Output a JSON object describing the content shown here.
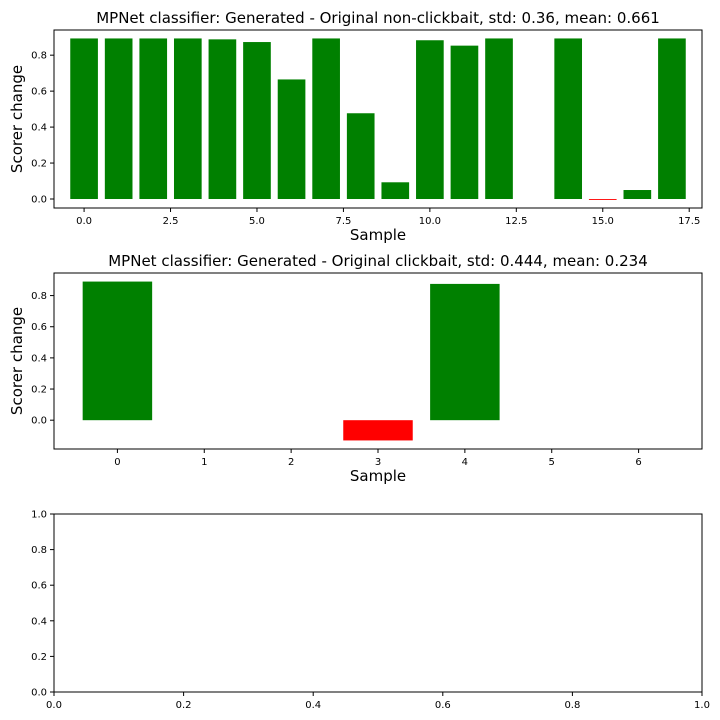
{
  "chart_data": [
    {
      "type": "bar",
      "title": "MPNet classifier: Generated - Original non-clickbait, std: 0.36, mean: 0.661",
      "xlabel": "Sample",
      "ylabel": "Scorer change",
      "x": [
        0,
        1,
        2,
        3,
        4,
        5,
        6,
        7,
        8,
        9,
        10,
        11,
        12,
        13,
        14,
        15,
        16,
        17
      ],
      "values": [
        0.893,
        0.893,
        0.893,
        0.893,
        0.888,
        0.873,
        0.665,
        0.893,
        0.477,
        0.093,
        0.883,
        0.853,
        0.893,
        0.0,
        0.893,
        -0.005,
        0.05,
        0.893
      ],
      "xlim": [
        -0.87,
        17.87
      ],
      "ylim": [
        -0.05,
        0.94
      ],
      "xticks": [
        0.0,
        2.5,
        5.0,
        7.5,
        10.0,
        12.5,
        15.0,
        17.5
      ],
      "xtick_labels": [
        "0.0",
        "2.5",
        "5.0",
        "7.5",
        "10.0",
        "12.5",
        "15.0",
        "17.5"
      ],
      "yticks": [
        0.0,
        0.2,
        0.4,
        0.6,
        0.8
      ],
      "ytick_labels": [
        "0.0",
        "0.2",
        "0.4",
        "0.6",
        "0.8"
      ],
      "positive_color": "#008000",
      "negative_color": "#ff0000",
      "grid": false
    },
    {
      "type": "bar",
      "title": "MPNet classifier: Generated - Original clickbait, std: 0.444, mean: 0.234",
      "xlabel": "Sample",
      "ylabel": "Scorer change",
      "x": [
        0,
        1,
        2,
        3,
        4,
        5,
        6
      ],
      "values": [
        0.89,
        0.0,
        0.0,
        -0.13,
        0.875,
        0.0,
        0.0
      ],
      "xlim": [
        -0.73,
        6.73
      ],
      "ylim": [
        -0.185,
        0.945
      ],
      "xticks": [
        0,
        1,
        2,
        3,
        4,
        5,
        6
      ],
      "xtick_labels": [
        "0",
        "1",
        "2",
        "3",
        "4",
        "5",
        "6"
      ],
      "yticks": [
        0.0,
        0.2,
        0.4,
        0.6,
        0.8
      ],
      "ytick_labels": [
        "0.0",
        "0.2",
        "0.4",
        "0.6",
        "0.8"
      ],
      "positive_color": "#008000",
      "negative_color": "#ff0000",
      "grid": false
    },
    {
      "type": "empty",
      "title": "",
      "xlabel": "",
      "ylabel": "",
      "xlim": [
        0,
        1
      ],
      "ylim": [
        0,
        1
      ],
      "xticks": [
        0.0,
        0.2,
        0.4,
        0.6,
        0.8,
        1.0
      ],
      "xtick_labels": [
        "0.0",
        "0.2",
        "0.4",
        "0.6",
        "0.8",
        "1.0"
      ],
      "yticks": [
        0.0,
        0.2,
        0.4,
        0.6,
        0.8,
        1.0
      ],
      "ytick_labels": [
        "0.0",
        "0.2",
        "0.4",
        "0.6",
        "0.8",
        "1.0"
      ],
      "grid": false
    }
  ]
}
